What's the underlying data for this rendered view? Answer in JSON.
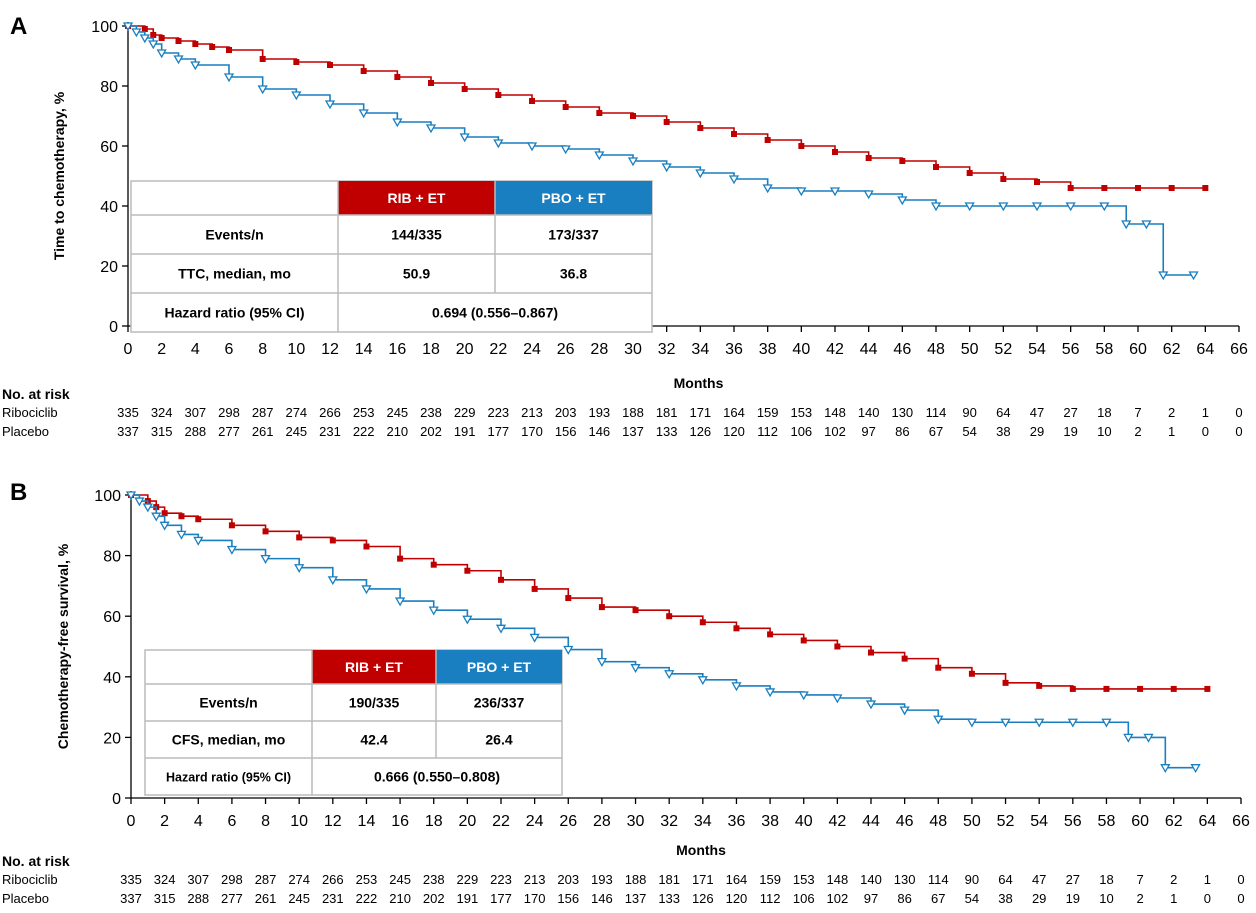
{
  "colors": {
    "ribociclib": "#c00000",
    "placebo": "#1a7fc0",
    "grid_border": "#bbbbbb"
  },
  "chart_data": [
    {
      "panel": "A",
      "type": "line",
      "ylabel": "Time to chemotherapy, %",
      "xlabel": "Months",
      "xlim": [
        0,
        66
      ],
      "ylim": [
        0,
        100
      ],
      "xticks": [
        0,
        2,
        4,
        6,
        8,
        10,
        12,
        14,
        16,
        18,
        20,
        22,
        24,
        26,
        28,
        30,
        32,
        34,
        36,
        38,
        40,
        42,
        44,
        46,
        48,
        50,
        52,
        54,
        56,
        58,
        60,
        62,
        64,
        66
      ],
      "yticks": [
        0,
        20,
        40,
        60,
        80,
        100
      ],
      "series": [
        {
          "name": "RIB + ET",
          "key": "rib",
          "x": [
            0,
            1,
            1.5,
            2,
            3,
            4,
            5,
            6,
            8,
            10,
            12,
            14,
            16,
            18,
            20,
            22,
            24,
            26,
            28,
            30,
            32,
            34,
            36,
            38,
            40,
            42,
            44,
            46,
            48,
            50,
            52,
            54,
            56,
            58,
            60,
            62,
            64
          ],
          "y": [
            100,
            99,
            97,
            96,
            95,
            94,
            93,
            92,
            89,
            88,
            87,
            85,
            83,
            81,
            79,
            77,
            75,
            73,
            71,
            70,
            68,
            66,
            64,
            62,
            60,
            58,
            56,
            55,
            53,
            51,
            49,
            48,
            46,
            46,
            46,
            46,
            46
          ]
        },
        {
          "name": "PBO + ET",
          "key": "pbo",
          "x": [
            0,
            0.5,
            1,
            1.5,
            2,
            3,
            4,
            6,
            8,
            10,
            12,
            14,
            16,
            18,
            20,
            22,
            24,
            26,
            28,
            30,
            32,
            34,
            36,
            38,
            40,
            42,
            44,
            46,
            48,
            50,
            52,
            54,
            56,
            58,
            59.3,
            60.5,
            61.5,
            63.3
          ],
          "y": [
            100,
            98,
            96,
            94,
            91,
            89,
            87,
            83,
            79,
            77,
            74,
            71,
            68,
            66,
            63,
            61,
            60,
            59,
            57,
            55,
            53,
            51,
            49,
            46,
            45,
            45,
            44,
            42,
            40,
            40,
            40,
            40,
            40,
            40,
            34,
            34,
            17,
            17
          ]
        }
      ],
      "legend_table": {
        "headers": [
          "RIB + ET",
          "PBO + ET"
        ],
        "rows": [
          {
            "label": "Events/n",
            "rib": "144/335",
            "pbo": "173/337"
          },
          {
            "label": "TTC, median, mo",
            "rib": "50.9",
            "pbo": "36.8"
          }
        ],
        "hr_label": "Hazard ratio (95% CI)",
        "hr_value": "0.694 (0.556–0.867)"
      },
      "risk_table": {
        "title": "No. at risk",
        "rows": [
          {
            "label": "Ribociclib",
            "values": [
              335,
              324,
              307,
              298,
              287,
              274,
              266,
              253,
              245,
              238,
              229,
              223,
              213,
              203,
              193,
              188,
              181,
              171,
              164,
              159,
              153,
              148,
              140,
              130,
              114,
              90,
              64,
              47,
              27,
              18,
              7,
              2,
              1,
              0
            ]
          },
          {
            "label": "Placebo",
            "values": [
              337,
              315,
              288,
              277,
              261,
              245,
              231,
              222,
              210,
              202,
              191,
              177,
              170,
              156,
              146,
              137,
              133,
              126,
              120,
              112,
              106,
              102,
              97,
              86,
              67,
              54,
              38,
              29,
              19,
              10,
              2,
              1,
              0,
              0
            ]
          }
        ]
      }
    },
    {
      "panel": "B",
      "type": "line",
      "ylabel": "Chemotherapy-free survival, %",
      "xlabel": "Months",
      "xlim": [
        0,
        66
      ],
      "ylim": [
        0,
        100
      ],
      "xticks": [
        0,
        2,
        4,
        6,
        8,
        10,
        12,
        14,
        16,
        18,
        20,
        22,
        24,
        26,
        28,
        30,
        32,
        34,
        36,
        38,
        40,
        42,
        44,
        46,
        48,
        50,
        52,
        54,
        56,
        58,
        60,
        62,
        64,
        66
      ],
      "yticks": [
        0,
        20,
        40,
        60,
        80,
        100
      ],
      "series": [
        {
          "name": "RIB + ET",
          "key": "rib",
          "x": [
            0,
            1,
            1.5,
            2,
            3,
            4,
            6,
            8,
            10,
            12,
            14,
            16,
            18,
            20,
            22,
            24,
            26,
            28,
            30,
            32,
            34,
            36,
            38,
            40,
            42,
            44,
            46,
            48,
            50,
            52,
            54,
            56,
            58,
            60,
            62,
            64
          ],
          "y": [
            100,
            98,
            96,
            94,
            93,
            92,
            90,
            88,
            86,
            85,
            83,
            79,
            77,
            75,
            72,
            69,
            66,
            63,
            62,
            60,
            58,
            56,
            54,
            52,
            50,
            48,
            46,
            43,
            41,
            38,
            37,
            36,
            36,
            36,
            36,
            36
          ]
        },
        {
          "name": "PBO + ET",
          "key": "pbo",
          "x": [
            0,
            0.5,
            1,
            1.5,
            2,
            3,
            4,
            6,
            8,
            10,
            12,
            14,
            16,
            18,
            20,
            22,
            24,
            26,
            28,
            30,
            32,
            34,
            36,
            38,
            40,
            42,
            44,
            46,
            48,
            50,
            52,
            54,
            56,
            58,
            59.3,
            60.5,
            61.5,
            63.3
          ],
          "y": [
            100,
            98,
            96,
            93,
            90,
            87,
            85,
            82,
            79,
            76,
            72,
            69,
            65,
            62,
            59,
            56,
            53,
            49,
            45,
            43,
            41,
            39,
            37,
            35,
            34,
            33,
            31,
            29,
            26,
            25,
            25,
            25,
            25,
            25,
            20,
            20,
            10,
            10
          ]
        }
      ],
      "legend_table": {
        "headers": [
          "RIB + ET",
          "PBO + ET"
        ],
        "rows": [
          {
            "label": "Events/n",
            "rib": "190/335",
            "pbo": "236/337"
          },
          {
            "label": "CFS, median, mo",
            "rib": "42.4",
            "pbo": "26.4"
          }
        ],
        "hr_label": "Hazard ratio (95% CI)",
        "hr_value": "0.666 (0.550–0.808)"
      },
      "risk_table": {
        "title": "No. at risk",
        "rows": [
          {
            "label": "Ribociclib",
            "values": [
              335,
              324,
              307,
              298,
              287,
              274,
              266,
              253,
              245,
              238,
              229,
              223,
              213,
              203,
              193,
              188,
              181,
              171,
              164,
              159,
              153,
              148,
              140,
              130,
              114,
              90,
              64,
              47,
              27,
              18,
              7,
              2,
              1,
              0
            ]
          },
          {
            "label": "Placebo",
            "values": [
              337,
              315,
              288,
              277,
              261,
              245,
              231,
              222,
              210,
              202,
              191,
              177,
              170,
              156,
              146,
              137,
              133,
              126,
              120,
              112,
              106,
              102,
              97,
              86,
              67,
              54,
              38,
              29,
              19,
              10,
              2,
              1,
              0,
              0
            ]
          }
        ]
      }
    }
  ]
}
